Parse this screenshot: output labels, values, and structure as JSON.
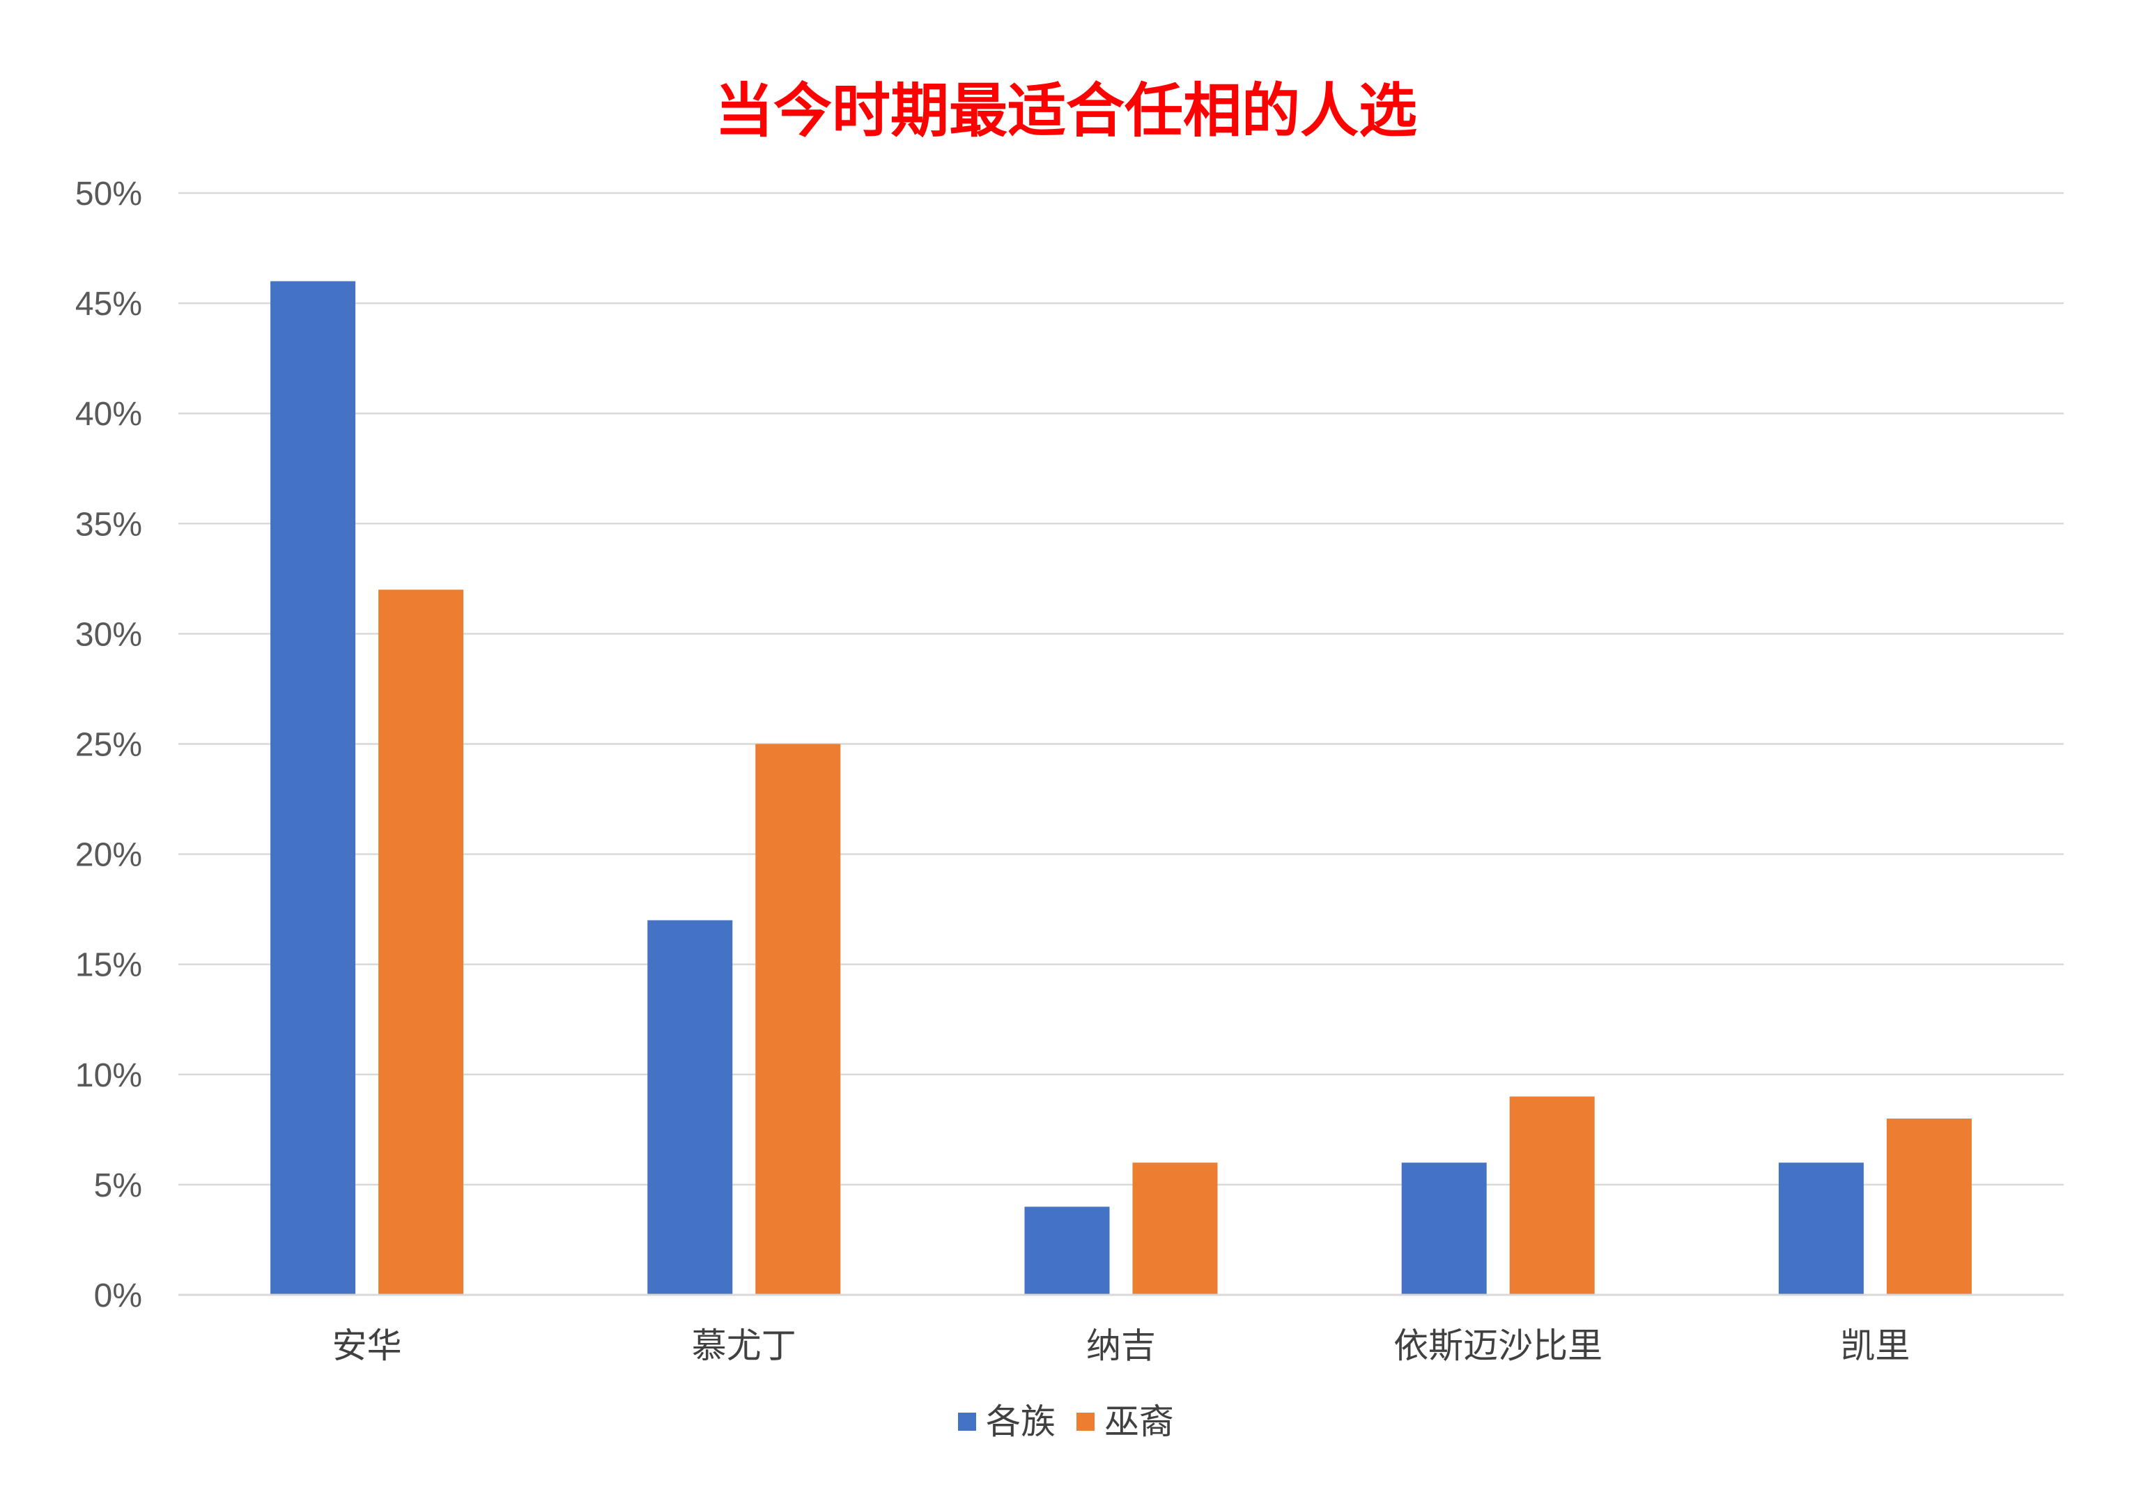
{
  "chart_data": {
    "type": "bar",
    "title": "当今时期最适合任相的人选",
    "title_color": "#ff0000",
    "categories": [
      "安华",
      "慕尤丁",
      "纳吉",
      "依斯迈沙比里",
      "凯里"
    ],
    "series": [
      {
        "name": "各族",
        "values": [
          46,
          17,
          4,
          6,
          6
        ],
        "color": "#4472c4"
      },
      {
        "name": "巫裔",
        "values": [
          32,
          25,
          6,
          9,
          8
        ],
        "color": "#ed7d31"
      }
    ],
    "y_ticks": [
      "0%",
      "5%",
      "10%",
      "15%",
      "20%",
      "25%",
      "30%",
      "35%",
      "40%",
      "45%",
      "50%"
    ],
    "ylim": [
      0,
      50
    ],
    "y_unit": "%",
    "grid": true,
    "gridline_color": "#d9d9d9",
    "legend_position": "bottom"
  }
}
